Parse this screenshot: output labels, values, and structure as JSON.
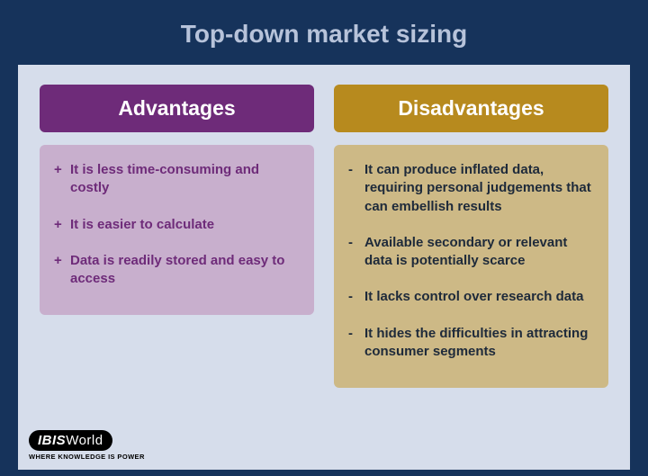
{
  "title": "Top-down market sizing",
  "background_outer": "#16335b",
  "background_inner": "#d6ddeb",
  "title_color": "#b7c3da",
  "columns": {
    "advantages": {
      "header": "Advantages",
      "header_bg": "#6e2b79",
      "body_bg": "#c8afcd",
      "text_color": "#6e2b79",
      "marker": "+",
      "items": [
        "It is less time-consuming and costly",
        "It is easier to calculate",
        "Data is readily stored and easy to access"
      ]
    },
    "disadvantages": {
      "header": "Disadvantages",
      "header_bg": "#b78a1e",
      "body_bg": "#cdb986",
      "text_color": "#1e2a3a",
      "marker": "-",
      "items": [
        "It can produce inflated data, requiring personal judgements that can embellish results",
        "Available secondary or relevant data is potentially scarce",
        "It lacks control over research data",
        "It hides the difficulties in attracting consumer segments"
      ]
    }
  },
  "logo": {
    "brand_bold": "IBIS",
    "brand_light": "World",
    "tagline": "WHERE KNOWLEDGE IS POWER"
  }
}
